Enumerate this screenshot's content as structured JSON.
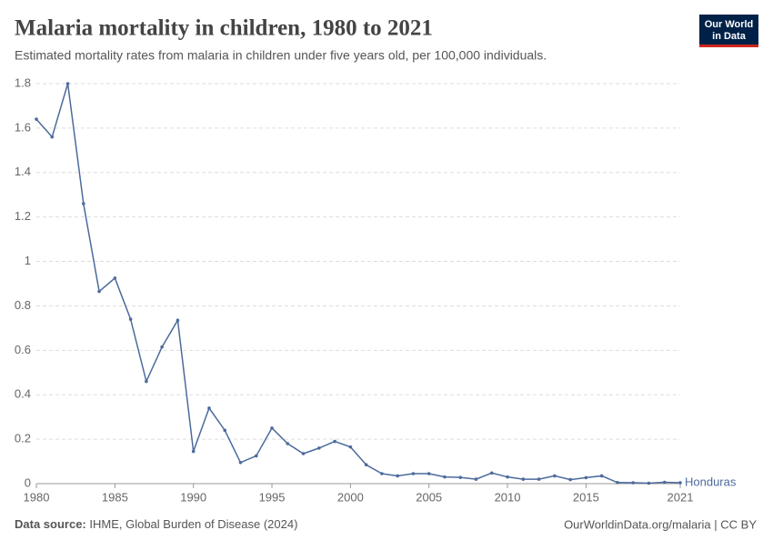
{
  "chart_data": {
    "type": "line",
    "title": "Malaria mortality in children, 1980 to 2021",
    "subtitle": "Estimated mortality rates from malaria in children under five years old, per 100,000 individuals.",
    "logo": [
      "Our World",
      "in Data"
    ],
    "source_label": "Data source:",
    "source": "IHME, Global Burden of Disease (2024)",
    "footer_right": "OurWorldinData.org/malaria | CC BY",
    "x": [
      1980,
      1981,
      1982,
      1983,
      1984,
      1985,
      1986,
      1987,
      1988,
      1989,
      1990,
      1991,
      1992,
      1993,
      1994,
      1995,
      1996,
      1997,
      1998,
      1999,
      2000,
      2001,
      2002,
      2003,
      2004,
      2005,
      2006,
      2007,
      2008,
      2009,
      2010,
      2011,
      2012,
      2013,
      2014,
      2015,
      2016,
      2017,
      2018,
      2019,
      2020,
      2021
    ],
    "series": [
      {
        "name": "Honduras",
        "color": "#4c6a9c",
        "values": [
          1.64,
          1.56,
          1.8,
          1.26,
          0.865,
          0.925,
          0.74,
          0.46,
          0.615,
          0.735,
          0.145,
          0.34,
          0.24,
          0.095,
          0.125,
          0.25,
          0.18,
          0.135,
          0.16,
          0.19,
          0.165,
          0.085,
          0.045,
          0.035,
          0.045,
          0.045,
          0.03,
          0.028,
          0.02,
          0.048,
          0.03,
          0.02,
          0.02,
          0.035,
          0.018,
          0.027,
          0.035,
          0.005,
          0.004,
          0.002,
          0.006,
          0.004
        ]
      }
    ],
    "xlim": [
      1980,
      2021
    ],
    "xticks": [
      1980,
      1985,
      1990,
      1995,
      2000,
      2005,
      2010,
      2015,
      2021
    ],
    "ylim": [
      0,
      1.8
    ],
    "yticks": [
      0,
      0.2,
      0.4,
      0.6,
      0.8,
      1,
      1.2,
      1.4,
      1.6,
      1.8
    ],
    "grid": true
  }
}
